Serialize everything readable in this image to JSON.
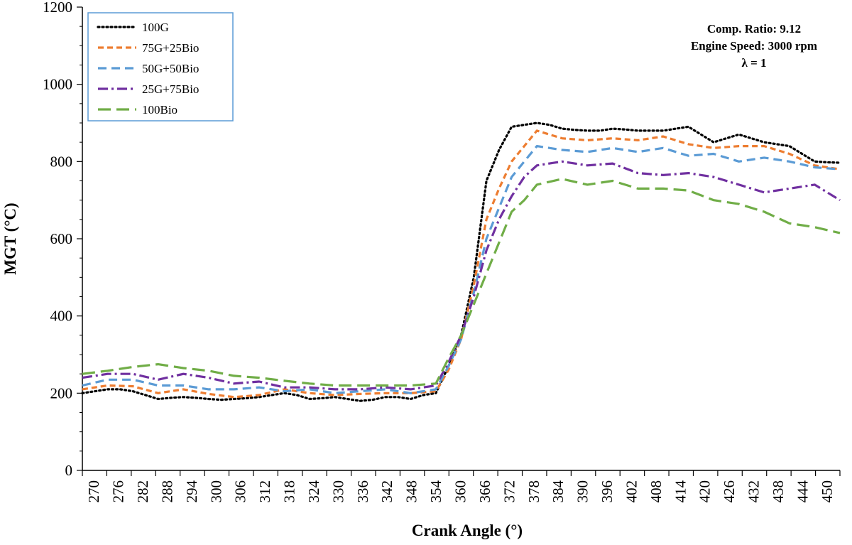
{
  "chart_data": {
    "type": "line",
    "xlabel": "Crank Angle (°)",
    "ylabel": "MGT (°C)",
    "xlim": [
      270,
      450
    ],
    "ylim": [
      0,
      1200
    ],
    "x_ticks": [
      "270",
      "276",
      "282",
      "288",
      "294",
      "300",
      "306",
      "312",
      "318",
      "324",
      "330",
      "336",
      "342",
      "348",
      "354",
      "360",
      "366",
      "372",
      "378",
      "384",
      "390",
      "396",
      "402",
      "408",
      "414",
      "420",
      "426",
      "432",
      "438",
      "444",
      "450"
    ],
    "y_ticks": [
      "0",
      "200",
      "400",
      "600",
      "800",
      "1000",
      "1200"
    ],
    "grid": false,
    "legend_position": "top-left",
    "annotations": [
      "Comp. Ratio: 9.12",
      "Engine Speed: 3000 rpm",
      "λ = 1"
    ],
    "series": [
      {
        "name": "100G",
        "color": "#000000",
        "dash": "dotted",
        "x": [
          270,
          273,
          276,
          279,
          282,
          285,
          288,
          291,
          294,
          297,
          300,
          303,
          306,
          309,
          312,
          315,
          318,
          321,
          324,
          327,
          330,
          333,
          336,
          339,
          342,
          345,
          348,
          351,
          354,
          357,
          360,
          363,
          366,
          369,
          372,
          375,
          378,
          381,
          384,
          387,
          390,
          393,
          396,
          399,
          402,
          405,
          408,
          411,
          414,
          417,
          420,
          423,
          426,
          429,
          432,
          435,
          438,
          441,
          444,
          447,
          450
        ],
        "values": [
          200,
          205,
          210,
          210,
          205,
          195,
          185,
          188,
          190,
          188,
          185,
          183,
          185,
          187,
          190,
          195,
          200,
          195,
          185,
          187,
          190,
          185,
          180,
          183,
          190,
          190,
          185,
          195,
          200,
          270,
          350,
          500,
          750,
          830,
          890,
          895,
          900,
          895,
          885,
          882,
          880,
          880,
          885,
          883,
          880,
          880,
          880,
          885,
          890,
          870,
          850,
          860,
          870,
          860,
          850,
          845,
          840,
          820,
          800,
          798,
          797
        ]
      },
      {
        "name": "75G+25Bio",
        "color": "#ED7D31",
        "dash": "short-dash",
        "x": [
          270,
          276,
          282,
          288,
          294,
          300,
          306,
          312,
          318,
          324,
          330,
          336,
          342,
          348,
          354,
          357,
          360,
          363,
          366,
          369,
          372,
          375,
          378,
          384,
          390,
          396,
          402,
          408,
          414,
          420,
          426,
          432,
          438,
          444,
          450
        ],
        "values": [
          210,
          220,
          218,
          200,
          210,
          198,
          190,
          195,
          210,
          200,
          195,
          198,
          200,
          200,
          205,
          260,
          340,
          480,
          650,
          730,
          800,
          840,
          880,
          860,
          855,
          860,
          855,
          865,
          845,
          835,
          840,
          840,
          820,
          790,
          780
        ]
      },
      {
        "name": "50G+50Bio",
        "color": "#5B9BD5",
        "dash": "dash",
        "x": [
          270,
          276,
          282,
          288,
          294,
          300,
          306,
          312,
          318,
          324,
          330,
          336,
          342,
          348,
          354,
          357,
          360,
          363,
          366,
          369,
          372,
          375,
          378,
          384,
          390,
          396,
          402,
          408,
          414,
          420,
          426,
          432,
          438,
          444,
          450
        ],
        "values": [
          220,
          235,
          235,
          220,
          220,
          210,
          210,
          215,
          205,
          210,
          200,
          205,
          210,
          200,
          210,
          270,
          340,
          460,
          600,
          680,
          760,
          800,
          840,
          830,
          825,
          835,
          825,
          835,
          815,
          820,
          800,
          810,
          800,
          785,
          780
        ]
      },
      {
        "name": "25G+75Bio",
        "color": "#7030A0",
        "dash": "dash-dot",
        "x": [
          270,
          276,
          282,
          288,
          294,
          300,
          306,
          312,
          318,
          324,
          330,
          336,
          342,
          348,
          354,
          357,
          360,
          363,
          366,
          369,
          372,
          375,
          378,
          384,
          390,
          396,
          402,
          408,
          414,
          420,
          426,
          432,
          438,
          444,
          450
        ],
        "values": [
          240,
          250,
          250,
          235,
          250,
          240,
          225,
          230,
          215,
          215,
          210,
          210,
          215,
          210,
          220,
          280,
          350,
          450,
          570,
          650,
          710,
          760,
          790,
          800,
          790,
          795,
          770,
          765,
          770,
          760,
          740,
          720,
          730,
          740,
          700
        ]
      },
      {
        "name": "100Bio",
        "color": "#70AD47",
        "dash": "long-dash",
        "x": [
          270,
          276,
          282,
          288,
          294,
          300,
          306,
          312,
          318,
          324,
          330,
          336,
          342,
          348,
          354,
          357,
          360,
          363,
          366,
          369,
          372,
          375,
          378,
          384,
          390,
          396,
          402,
          408,
          414,
          420,
          426,
          432,
          438,
          444,
          450
        ],
        "values": [
          250,
          258,
          268,
          275,
          265,
          258,
          245,
          240,
          232,
          225,
          220,
          220,
          220,
          220,
          225,
          290,
          350,
          430,
          510,
          590,
          670,
          700,
          740,
          755,
          740,
          750,
          730,
          730,
          725,
          700,
          690,
          670,
          640,
          630,
          615
        ]
      }
    ]
  }
}
